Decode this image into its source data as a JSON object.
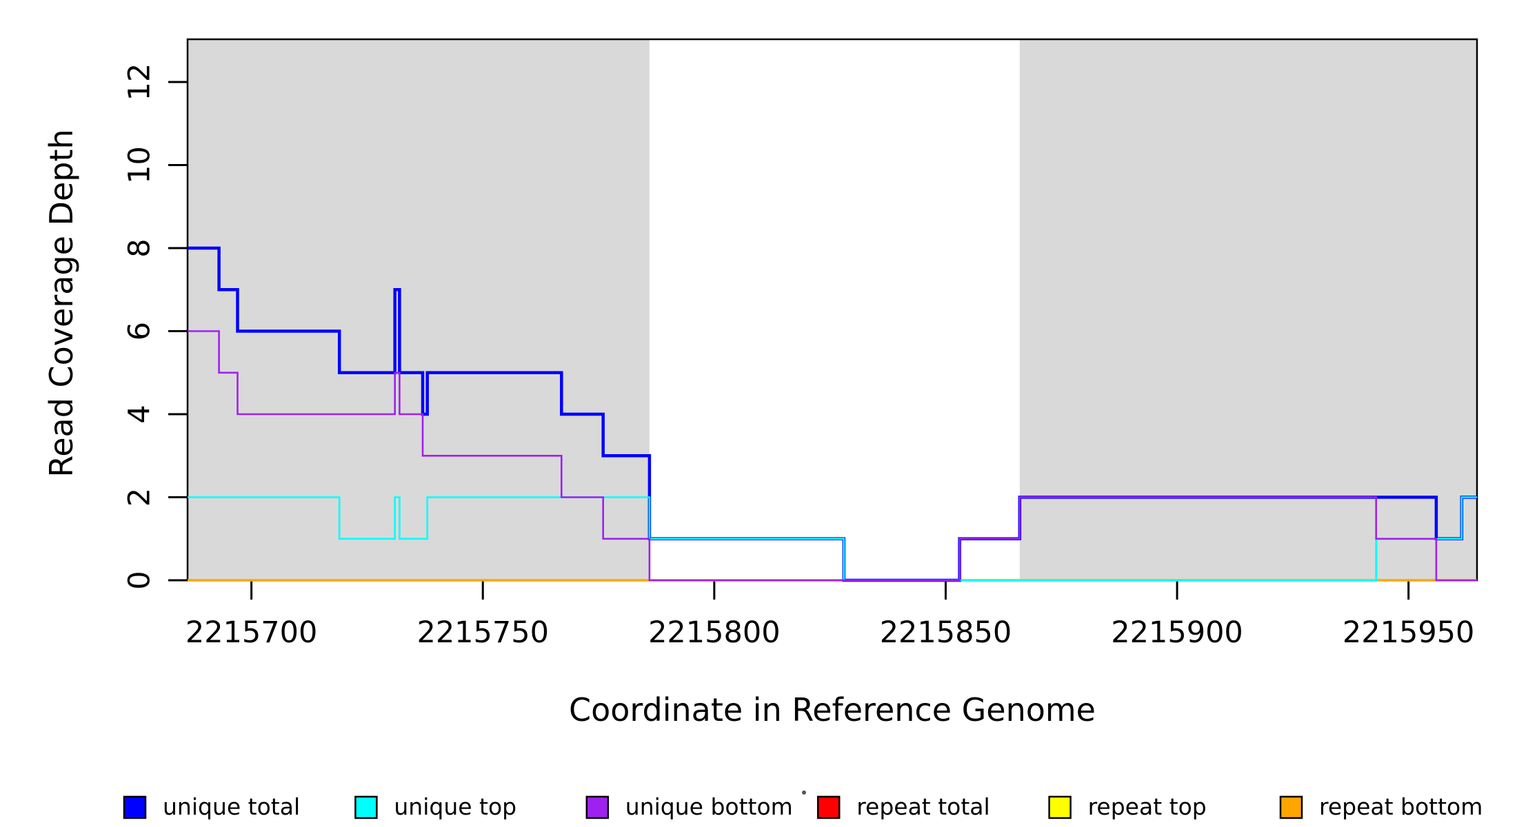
{
  "chart_data": {
    "type": "line",
    "subtype": "step-coverage",
    "title": "",
    "xlabel": "Coordinate in Reference Genome",
    "ylabel": "Read Coverage Depth",
    "xlim": [
      2215686.2,
      2215964.8
    ],
    "ylim": [
      0,
      13.03
    ],
    "x_ticks": [
      "2215700",
      "2215750",
      "2215800",
      "2215850",
      "2215900",
      "2215950"
    ],
    "x_tick_values": [
      2215700,
      2215750,
      2215800,
      2215850,
      2215900,
      2215950
    ],
    "y_ticks": [
      "0",
      "2",
      "4",
      "6",
      "8",
      "10",
      "12"
    ],
    "y_tick_values": [
      0,
      2,
      4,
      6,
      8,
      10,
      12
    ],
    "grid": false,
    "legend_position": "bottom",
    "shaded_regions": [
      {
        "name": "gray-band-left",
        "x0": 2215686.2,
        "x1": 2215786,
        "color": "#d9d9d9"
      },
      {
        "name": "gray-band-right",
        "x0": 2215866,
        "x1": 2215964.8,
        "color": "#d9d9d9"
      }
    ],
    "series": [
      {
        "name": "repeat total",
        "color": "#FF0000",
        "width": 2.5,
        "points": [
          [
            2215686.2,
            0
          ],
          [
            2215964.8,
            0
          ]
        ]
      },
      {
        "name": "repeat top",
        "color": "#FFFF00",
        "width": 2.5,
        "points": [
          [
            2215686.2,
            0
          ],
          [
            2215964.8,
            0
          ]
        ]
      },
      {
        "name": "repeat bottom",
        "color": "#FFA500",
        "width": 3.5,
        "points": [
          [
            2215686.2,
            0
          ],
          [
            2215964.8,
            0
          ]
        ]
      },
      {
        "name": "unique total",
        "color": "#0000FF",
        "width": 4.5,
        "points": [
          [
            2215686.2,
            8
          ],
          [
            2215693,
            8
          ],
          [
            2215693,
            7
          ],
          [
            2215697,
            7
          ],
          [
            2215697,
            6
          ],
          [
            2215719,
            6
          ],
          [
            2215719,
            5
          ],
          [
            2215731,
            5
          ],
          [
            2215731,
            7
          ],
          [
            2215732,
            7
          ],
          [
            2215732,
            5
          ],
          [
            2215737,
            5
          ],
          [
            2215737,
            4
          ],
          [
            2215738,
            4
          ],
          [
            2215738,
            5
          ],
          [
            2215767,
            5
          ],
          [
            2215767,
            4
          ],
          [
            2215776,
            4
          ],
          [
            2215776,
            3
          ],
          [
            2215786,
            3
          ],
          [
            2215786,
            1
          ],
          [
            2215828,
            1
          ],
          [
            2215828,
            0
          ],
          [
            2215853,
            0
          ],
          [
            2215853,
            1
          ],
          [
            2215866,
            1
          ],
          [
            2215866,
            2
          ],
          [
            2215956,
            2
          ],
          [
            2215956,
            1
          ],
          [
            2215961.5,
            1
          ],
          [
            2215961.5,
            2
          ],
          [
            2215964.8,
            2
          ]
        ]
      },
      {
        "name": "unique top",
        "color": "#00FFFF",
        "width": 2.6,
        "points": [
          [
            2215686.2,
            2
          ],
          [
            2215719,
            2
          ],
          [
            2215719,
            1
          ],
          [
            2215731,
            1
          ],
          [
            2215731,
            2
          ],
          [
            2215732,
            2
          ],
          [
            2215732,
            1
          ],
          [
            2215738,
            1
          ],
          [
            2215738,
            2
          ],
          [
            2215786,
            2
          ],
          [
            2215786,
            1
          ],
          [
            2215828,
            1
          ],
          [
            2215828,
            0
          ],
          [
            2215943,
            0
          ],
          [
            2215943,
            1
          ],
          [
            2215961.5,
            1
          ],
          [
            2215961.5,
            2
          ],
          [
            2215964.8,
            2
          ]
        ]
      },
      {
        "name": "unique bottom",
        "color": "#A020F0",
        "width": 2.6,
        "points": [
          [
            2215686.2,
            6
          ],
          [
            2215693,
            6
          ],
          [
            2215693,
            5
          ],
          [
            2215697,
            5
          ],
          [
            2215697,
            4
          ],
          [
            2215731,
            4
          ],
          [
            2215731,
            5
          ],
          [
            2215732,
            5
          ],
          [
            2215732,
            4
          ],
          [
            2215737,
            4
          ],
          [
            2215737,
            3
          ],
          [
            2215767,
            3
          ],
          [
            2215767,
            2
          ],
          [
            2215776,
            2
          ],
          [
            2215776,
            1
          ],
          [
            2215786,
            1
          ],
          [
            2215786,
            0
          ],
          [
            2215853,
            0
          ],
          [
            2215853,
            1
          ],
          [
            2215866,
            1
          ],
          [
            2215866,
            2
          ],
          [
            2215943,
            2
          ],
          [
            2215943,
            1
          ],
          [
            2215956,
            1
          ],
          [
            2215956,
            0
          ],
          [
            2215964.8,
            0
          ]
        ]
      }
    ]
  },
  "legend": {
    "items": [
      {
        "label": "unique total",
        "color": "#0000FF"
      },
      {
        "label": "unique top",
        "color": "#00FFFF"
      },
      {
        "label": "unique bottom",
        "color": "#A020F0"
      },
      {
        "label": "repeat total",
        "color": "#FF0000"
      },
      {
        "label": "repeat top",
        "color": "#FFFF00"
      },
      {
        "label": "repeat bottom",
        "color": "#FFA500"
      }
    ]
  }
}
